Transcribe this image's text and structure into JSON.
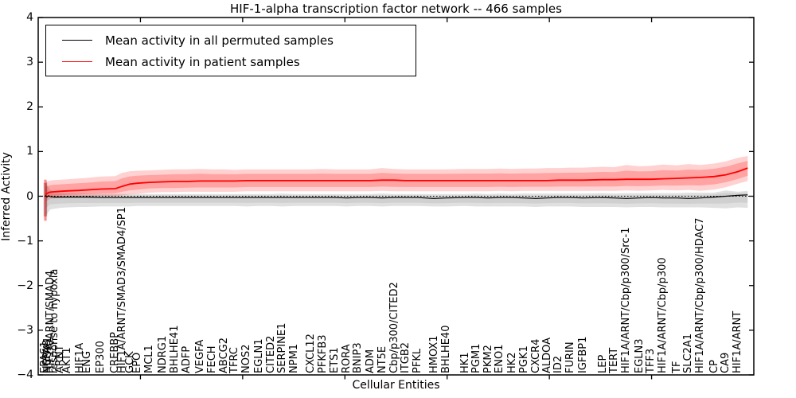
{
  "figure": {
    "title": "HIF-1-alpha transcription factor network -- 466 samples",
    "xlabel": "Cellular Entities",
    "ylabel": "Inferred Activity"
  },
  "legend": {
    "entries": [
      {
        "label": "Mean activity in all permuted samples",
        "color": "#000000"
      },
      {
        "label": "Mean activity in patient samples",
        "color": "#ff0000"
      }
    ]
  },
  "colors": {
    "patient_line": "#ff0000",
    "patient_band": "#ff0000",
    "permuted_line": "#000000",
    "permuted_band": "#000000",
    "frame": "#000000"
  },
  "chart_data": {
    "type": "line",
    "title": "HIF-1-alpha transcription factor network -- 466 samples",
    "xlabel": "Cellular Entities",
    "ylabel": "Inferred Activity",
    "ylim": [
      -4,
      4
    ],
    "yticks": [
      4,
      3,
      2,
      1,
      0,
      -1,
      -2,
      -3,
      -4
    ],
    "xlim": [
      0,
      70
    ],
    "xticks": [
      10,
      20,
      30,
      40,
      50,
      60
    ],
    "grid": false,
    "zero_reference_line": true,
    "legend_position": "upper left",
    "inner_band_fraction": 0.6,
    "entities": [
      {
        "label": "EPAS1",
        "x": 0.7
      },
      {
        "label": "HSPA8",
        "x": 0.86
      },
      {
        "label": "NCOA1",
        "x": 1.01
      },
      {
        "label": "HIF1A/ARNT/SMAD4",
        "x": 1.17
      },
      {
        "label": "response to hypoxia",
        "x": 1.56
      },
      {
        "label": "ARNT",
        "x": 2.18
      },
      {
        "label": "AKT1",
        "x": 2.88
      },
      {
        "label": "HIF1A",
        "x": 4.05
      },
      {
        "label": "ENG",
        "x": 4.75
      },
      {
        "label": "EP300",
        "x": 6.15
      },
      {
        "label": "CREBBP",
        "x": 7.55
      },
      {
        "label": "HIF1A/ARNT/SMAD3/SMAD4/SP1",
        "x": 8.18
      },
      {
        "label": "GCK",
        "x": 8.96
      },
      {
        "label": "EPO",
        "x": 9.66
      },
      {
        "label": "MCL1",
        "x": 10.9
      },
      {
        "label": "NDRG1",
        "x": 12.15
      },
      {
        "label": "BHLHE41",
        "x": 13.32
      },
      {
        "label": "ADFP",
        "x": 14.56
      },
      {
        "label": "VEGFA",
        "x": 15.81
      },
      {
        "label": "FECH",
        "x": 16.98
      },
      {
        "label": "ABCG2",
        "x": 18.22
      },
      {
        "label": "TFRC",
        "x": 19.23
      },
      {
        "label": "NOS2",
        "x": 20.4
      },
      {
        "label": "EGLN1",
        "x": 21.57
      },
      {
        "label": "CITED2",
        "x": 22.74
      },
      {
        "label": "SERPINE1",
        "x": 23.9
      },
      {
        "label": "NPM1",
        "x": 25.07
      },
      {
        "label": "CXCL12",
        "x": 26.63
      },
      {
        "label": "PFKFB3",
        "x": 27.8
      },
      {
        "label": "ETS1",
        "x": 28.97
      },
      {
        "label": "RORA",
        "x": 30.21
      },
      {
        "label": "BNIP3",
        "x": 31.3
      },
      {
        "label": "ADM",
        "x": 32.47
      },
      {
        "label": "NT5E",
        "x": 33.64
      },
      {
        "label": "Cbp/p300/CITED2",
        "x": 34.81
      },
      {
        "label": "ITGB2",
        "x": 35.97
      },
      {
        "label": "PFKL",
        "x": 37.14
      },
      {
        "label": "HMOX1",
        "x": 38.7
      },
      {
        "label": "BHLHE40",
        "x": 39.87
      },
      {
        "label": "HK1",
        "x": 41.81
      },
      {
        "label": "PGM1",
        "x": 42.83
      },
      {
        "label": "PKM2",
        "x": 44.0
      },
      {
        "label": "ENO1",
        "x": 45.16
      },
      {
        "label": "HK2",
        "x": 46.33
      },
      {
        "label": "PGK1",
        "x": 47.5
      },
      {
        "label": "CXCR4",
        "x": 48.67
      },
      {
        "label": "ALDOA",
        "x": 49.76
      },
      {
        "label": "ID2",
        "x": 50.92
      },
      {
        "label": "FURIN",
        "x": 52.09
      },
      {
        "label": "IGFBP1",
        "x": 53.26
      },
      {
        "label": "LEP",
        "x": 55.21
      },
      {
        "label": "TERT",
        "x": 56.37
      },
      {
        "label": "HIF1A/ARNT/Cbp/p300/Src-1",
        "x": 57.54
      },
      {
        "label": "EGLN3",
        "x": 58.79
      },
      {
        "label": "TFF3",
        "x": 59.95
      },
      {
        "label": "HIF1A/ARNT/Cbp/p300",
        "x": 61.12
      },
      {
        "label": "TF",
        "x": 62.45
      },
      {
        "label": "SLC2A1",
        "x": 63.61
      },
      {
        "label": "HIF1A/ARNT/Cbp/p300/HDAC7",
        "x": 64.78
      },
      {
        "label": "CP",
        "x": 66.11
      },
      {
        "label": "CA9",
        "x": 67.27
      },
      {
        "label": "HIF1A/ARNT",
        "x": 68.44
      },
      {
        "label": "",
        "x": 69.4
      }
    ],
    "series": [
      {
        "name": "Mean activity in patient samples",
        "color": "#ff0000",
        "mean": [
          0.04,
          0.06,
          0.08,
          0.09,
          0.1,
          0.11,
          0.12,
          0.13,
          0.14,
          0.16,
          0.17,
          0.22,
          0.27,
          0.29,
          0.31,
          0.32,
          0.33,
          0.33,
          0.34,
          0.34,
          0.34,
          0.34,
          0.35,
          0.35,
          0.35,
          0.35,
          0.35,
          0.35,
          0.35,
          0.35,
          0.35,
          0.35,
          0.35,
          0.36,
          0.36,
          0.35,
          0.35,
          0.35,
          0.35,
          0.35,
          0.35,
          0.35,
          0.35,
          0.35,
          0.35,
          0.35,
          0.35,
          0.36,
          0.36,
          0.36,
          0.37,
          0.37,
          0.38,
          0.38,
          0.38,
          0.39,
          0.4,
          0.41,
          0.42,
          0.44,
          0.48,
          0.55,
          0.63
        ],
        "upper": [
          0.32,
          0.33,
          0.34,
          0.35,
          0.36,
          0.37,
          0.38,
          0.4,
          0.41,
          0.44,
          0.45,
          0.52,
          0.56,
          0.57,
          0.58,
          0.59,
          0.6,
          0.6,
          0.61,
          0.6,
          0.6,
          0.59,
          0.6,
          0.6,
          0.6,
          0.6,
          0.6,
          0.6,
          0.61,
          0.6,
          0.6,
          0.6,
          0.6,
          0.63,
          0.61,
          0.6,
          0.6,
          0.6,
          0.6,
          0.61,
          0.61,
          0.61,
          0.62,
          0.61,
          0.62,
          0.62,
          0.63,
          0.63,
          0.64,
          0.64,
          0.66,
          0.65,
          0.7,
          0.67,
          0.68,
          0.71,
          0.69,
          0.72,
          0.7,
          0.73,
          0.78,
          0.86,
          0.9
        ],
        "lower": [
          -0.12,
          -0.1,
          -0.08,
          -0.06,
          -0.05,
          -0.04,
          -0.03,
          -0.02,
          -0.01,
          0.0,
          0.0,
          0.02,
          0.04,
          0.05,
          0.08,
          0.09,
          0.09,
          0.1,
          0.1,
          0.1,
          0.1,
          0.1,
          0.11,
          0.11,
          0.11,
          0.11,
          0.11,
          0.11,
          0.11,
          0.11,
          0.11,
          0.11,
          0.11,
          0.12,
          0.11,
          0.11,
          0.11,
          0.11,
          0.11,
          0.11,
          0.11,
          0.11,
          0.12,
          0.11,
          0.12,
          0.12,
          0.12,
          0.12,
          0.12,
          0.12,
          0.12,
          0.12,
          0.13,
          0.12,
          0.13,
          0.14,
          0.13,
          0.14,
          0.12,
          0.15,
          0.2,
          0.28,
          0.34
        ]
      },
      {
        "name": "Mean activity in all permuted samples",
        "color": "#000000",
        "mean": [
          0.02,
          -0.02,
          0.01,
          -0.01,
          -0.02,
          -0.02,
          -0.02,
          -0.02,
          -0.02,
          -0.03,
          -0.03,
          -0.03,
          -0.03,
          -0.03,
          -0.03,
          -0.03,
          -0.03,
          -0.03,
          -0.03,
          -0.03,
          -0.03,
          -0.03,
          -0.03,
          -0.03,
          -0.03,
          -0.03,
          -0.03,
          -0.03,
          -0.03,
          -0.03,
          -0.04,
          -0.03,
          -0.03,
          -0.04,
          -0.03,
          -0.03,
          -0.03,
          -0.05,
          -0.04,
          -0.03,
          -0.03,
          -0.04,
          -0.03,
          -0.03,
          -0.04,
          -0.05,
          -0.04,
          -0.03,
          -0.03,
          -0.04,
          -0.03,
          -0.04,
          -0.05,
          -0.04,
          -0.03,
          -0.04,
          -0.04,
          -0.05,
          -0.04,
          -0.02,
          0.0,
          0.02,
          0.03
        ],
        "upper": [
          0.3,
          0.25,
          0.2,
          0.15,
          0.1,
          0.08,
          0.07,
          0.06,
          0.06,
          0.06,
          0.05,
          0.05,
          0.05,
          0.05,
          0.05,
          0.05,
          0.05,
          0.05,
          0.05,
          0.05,
          0.05,
          0.05,
          0.05,
          0.05,
          0.05,
          0.06,
          0.05,
          0.05,
          0.05,
          0.05,
          0.05,
          0.05,
          0.05,
          0.06,
          0.05,
          0.05,
          0.05,
          0.05,
          0.05,
          0.05,
          0.06,
          0.05,
          0.06,
          0.05,
          0.06,
          0.06,
          0.06,
          0.06,
          0.06,
          0.06,
          0.07,
          0.06,
          0.07,
          0.07,
          0.07,
          0.07,
          0.07,
          0.08,
          0.08,
          0.08,
          0.13,
          0.1,
          0.12
        ],
        "lower": [
          -0.45,
          -0.4,
          -0.35,
          -0.3,
          -0.28,
          -0.26,
          -0.25,
          -0.24,
          -0.24,
          -0.23,
          -0.23,
          -0.23,
          -0.23,
          -0.22,
          -0.22,
          -0.22,
          -0.22,
          -0.22,
          -0.22,
          -0.22,
          -0.22,
          -0.22,
          -0.23,
          -0.22,
          -0.22,
          -0.23,
          -0.22,
          -0.22,
          -0.22,
          -0.22,
          -0.23,
          -0.22,
          -0.22,
          -0.23,
          -0.22,
          -0.22,
          -0.22,
          -0.23,
          -0.23,
          -0.22,
          -0.23,
          -0.23,
          -0.23,
          -0.23,
          -0.23,
          -0.24,
          -0.23,
          -0.23,
          -0.23,
          -0.24,
          -0.24,
          -0.24,
          -0.25,
          -0.24,
          -0.24,
          -0.25,
          -0.25,
          -0.25,
          -0.25,
          -0.26,
          -0.27,
          -0.25,
          -0.26
        ]
      }
    ],
    "left_error_bar": {
      "x": 0.7,
      "patient": [
        -0.55,
        0.37
      ],
      "permuted": [
        -0.45,
        0.3
      ]
    }
  }
}
